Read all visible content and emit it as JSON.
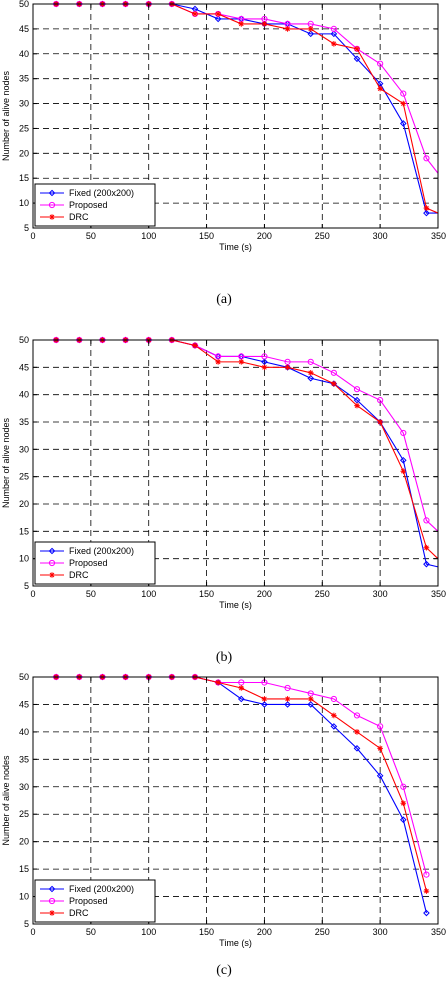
{
  "chart_data": [
    {
      "type": "line",
      "caption": "(a)",
      "xlabel": "Time (s)",
      "ylabel": "Number of alive nodes",
      "xlim": [
        0,
        350
      ],
      "ylim": [
        5,
        50
      ],
      "xticks": [
        0,
        50,
        100,
        150,
        200,
        250,
        300,
        350
      ],
      "yticks": [
        5,
        10,
        15,
        20,
        25,
        30,
        35,
        40,
        45,
        50
      ],
      "grid": true,
      "legend_position": "bottom-left",
      "series": [
        {
          "name": "Fixed (200x200)",
          "color": "#0000ff",
          "marker": "diamond",
          "x": [
            20,
            40,
            60,
            80,
            100,
            120,
            140,
            160,
            180,
            200,
            220,
            240,
            260,
            280,
            300,
            320,
            340,
            350
          ],
          "y": [
            50,
            50,
            50,
            50,
            50,
            50,
            49,
            47,
            47,
            46,
            46,
            44,
            44,
            39,
            34,
            26,
            8,
            8
          ]
        },
        {
          "name": "Proposed",
          "color": "#ff00ff",
          "marker": "circle",
          "x": [
            20,
            40,
            60,
            80,
            100,
            120,
            140,
            160,
            180,
            200,
            220,
            240,
            260,
            280,
            300,
            320,
            340,
            350
          ],
          "y": [
            50,
            50,
            50,
            50,
            50,
            50,
            48,
            48,
            47,
            47,
            46,
            46,
            45,
            41,
            38,
            32,
            19,
            16
          ]
        },
        {
          "name": "DRC",
          "color": "#ff0000",
          "marker": "star",
          "x": [
            20,
            40,
            60,
            80,
            100,
            120,
            140,
            160,
            180,
            200,
            220,
            240,
            260,
            280,
            300,
            320,
            340,
            350
          ],
          "y": [
            50,
            50,
            50,
            50,
            50,
            50,
            48,
            48,
            46,
            46,
            45,
            45,
            42,
            41,
            33,
            30,
            9,
            8
          ]
        }
      ]
    },
    {
      "type": "line",
      "caption": "(b)",
      "xlabel": "Time (s)",
      "ylabel": "Number of alive nodes",
      "xlim": [
        0,
        350
      ],
      "ylim": [
        5,
        50
      ],
      "xticks": [
        0,
        50,
        100,
        150,
        200,
        250,
        300,
        350
      ],
      "yticks": [
        5,
        10,
        15,
        20,
        25,
        30,
        35,
        40,
        45,
        50
      ],
      "grid": true,
      "legend_position": "bottom-left",
      "series": [
        {
          "name": "Fixed (200x200)",
          "color": "#0000ff",
          "marker": "diamond",
          "x": [
            20,
            40,
            60,
            80,
            100,
            120,
            140,
            160,
            180,
            200,
            220,
            240,
            260,
            280,
            300,
            320,
            340,
            350
          ],
          "y": [
            50,
            50,
            50,
            50,
            50,
            50,
            49,
            47,
            47,
            46,
            45,
            43,
            42,
            39,
            35,
            28,
            9,
            8.5
          ]
        },
        {
          "name": "Proposed",
          "color": "#ff00ff",
          "marker": "circle",
          "x": [
            20,
            40,
            60,
            80,
            100,
            120,
            140,
            160,
            180,
            200,
            220,
            240,
            260,
            280,
            300,
            320,
            340,
            350
          ],
          "y": [
            50,
            50,
            50,
            50,
            50,
            50,
            49,
            47,
            47,
            47,
            46,
            46,
            44,
            41,
            39,
            33,
            17,
            15
          ]
        },
        {
          "name": "DRC",
          "color": "#ff0000",
          "marker": "star",
          "x": [
            20,
            40,
            60,
            80,
            100,
            120,
            140,
            160,
            180,
            200,
            220,
            240,
            260,
            280,
            300,
            320,
            340,
            350
          ],
          "y": [
            50,
            50,
            50,
            50,
            50,
            50,
            49,
            46,
            46,
            45,
            45,
            44,
            42,
            38,
            35,
            26,
            12,
            10
          ]
        }
      ]
    },
    {
      "type": "line",
      "caption": "(c)",
      "xlabel": "Time (s)",
      "ylabel": "Number of alive nodes",
      "xlim": [
        0,
        350
      ],
      "ylim": [
        5,
        50
      ],
      "xticks": [
        0,
        50,
        100,
        150,
        200,
        250,
        300,
        350
      ],
      "yticks": [
        5,
        10,
        15,
        20,
        25,
        30,
        35,
        40,
        45,
        50
      ],
      "grid": true,
      "legend_position": "bottom-left",
      "series": [
        {
          "name": "Fixed (200x200)",
          "color": "#0000ff",
          "marker": "diamond",
          "x": [
            20,
            40,
            60,
            80,
            100,
            120,
            140,
            160,
            180,
            200,
            220,
            240,
            260,
            280,
            300,
            320,
            340
          ],
          "y": [
            50,
            50,
            50,
            50,
            50,
            50,
            50,
            49,
            46,
            45,
            45,
            45,
            41,
            37,
            32,
            24,
            7
          ]
        },
        {
          "name": "Proposed",
          "color": "#ff00ff",
          "marker": "circle",
          "x": [
            20,
            40,
            60,
            80,
            100,
            120,
            140,
            160,
            180,
            200,
            220,
            240,
            260,
            280,
            300,
            320,
            340
          ],
          "y": [
            50,
            50,
            50,
            50,
            50,
            50,
            50,
            49,
            49,
            49,
            48,
            47,
            46,
            43,
            41,
            30,
            14
          ]
        },
        {
          "name": "DRC",
          "color": "#ff0000",
          "marker": "star",
          "x": [
            20,
            40,
            60,
            80,
            100,
            120,
            140,
            160,
            180,
            200,
            220,
            240,
            260,
            280,
            300,
            320,
            340
          ],
          "y": [
            50,
            50,
            50,
            50,
            50,
            50,
            50,
            49,
            48,
            46,
            46,
            46,
            43,
            40,
            37,
            27,
            11
          ]
        }
      ]
    }
  ]
}
